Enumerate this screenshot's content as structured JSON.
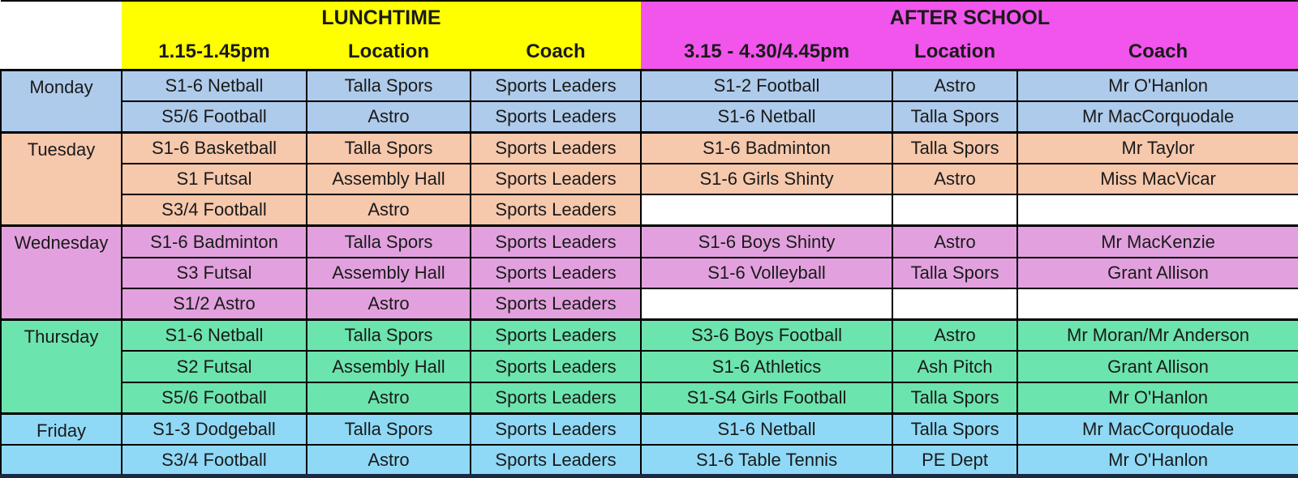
{
  "header": {
    "lunchtime": {
      "title": "LUNCHTIME",
      "time": "1.15-1.45pm",
      "location": "Location",
      "coach": "Coach"
    },
    "after_school": {
      "title": "AFTER SCHOOL",
      "time": "3.15 - 4.30/4.45pm",
      "location": "Location",
      "coach": "Coach"
    }
  },
  "colors": {
    "lunchtime_header": "#FFFF00",
    "after_school_header": "#F155EC",
    "monday": "#AECBEB",
    "tuesday": "#F6C8AC",
    "wednesday": "#E2A1DE",
    "thursday": "#6CE4AE",
    "friday": "#8FD9F6",
    "empty_cell": "#FFFFFF",
    "border": "#000000"
  },
  "days": [
    {
      "name": "Monday",
      "rows": [
        {
          "lunch": [
            "S1-6 Netball",
            "Talla Spors",
            "Sports Leaders"
          ],
          "after": [
            "S1-2 Football",
            "Astro",
            "Mr O'Hanlon"
          ]
        },
        {
          "lunch": [
            "S5/6 Football",
            "Astro",
            "Sports Leaders"
          ],
          "after": [
            "S1-6 Netball",
            "Talla Spors",
            "Mr MacCorquodale"
          ]
        }
      ]
    },
    {
      "name": "Tuesday",
      "rows": [
        {
          "lunch": [
            "S1-6 Basketball",
            "Talla Spors",
            "Sports Leaders"
          ],
          "after": [
            "S1-6 Badminton",
            "Talla Spors",
            "Mr Taylor"
          ]
        },
        {
          "lunch": [
            "S1 Futsal",
            "Assembly Hall",
            "Sports Leaders"
          ],
          "after": [
            "S1-6 Girls Shinty",
            "Astro",
            "Miss MacVicar"
          ]
        },
        {
          "lunch": [
            "S3/4 Football",
            "Astro",
            "Sports Leaders"
          ],
          "after": [
            "",
            "",
            ""
          ]
        }
      ]
    },
    {
      "name": "Wednesday",
      "rows": [
        {
          "lunch": [
            "S1-6 Badminton",
            "Talla Spors",
            "Sports Leaders"
          ],
          "after": [
            "S1-6 Boys Shinty",
            "Astro",
            "Mr MacKenzie"
          ]
        },
        {
          "lunch": [
            "S3 Futsal",
            "Assembly Hall",
            "Sports Leaders"
          ],
          "after": [
            "S1-6 Volleyball",
            "Talla Spors",
            "Grant Allison"
          ]
        },
        {
          "lunch": [
            "S1/2 Astro",
            "Astro",
            "Sports Leaders"
          ],
          "after": [
            "",
            "",
            ""
          ]
        }
      ]
    },
    {
      "name": "Thursday",
      "rows": [
        {
          "lunch": [
            "S1-6 Netball",
            "Talla Spors",
            "Sports Leaders"
          ],
          "after": [
            "S3-6 Boys Football",
            "Astro",
            "Mr Moran/Mr Anderson"
          ]
        },
        {
          "lunch": [
            "S2 Futsal",
            "Assembly Hall",
            "Sports Leaders"
          ],
          "after": [
            "S1-6 Athletics",
            "Ash Pitch",
            "Grant Allison"
          ]
        },
        {
          "lunch": [
            "S5/6 Football",
            "Astro",
            "Sports Leaders"
          ],
          "after": [
            "S1-S4 Girls Football",
            "Talla Spors",
            "Mr O'Hanlon"
          ]
        }
      ]
    },
    {
      "name": "Friday",
      "rows": [
        {
          "lunch": [
            "S1-3 Dodgeball",
            "Talla Spors",
            "Sports Leaders"
          ],
          "after": [
            "S1-6 Netball",
            "Talla Spors",
            "Mr MacCorquodale"
          ]
        },
        {
          "lunch": [
            "S3/4 Football",
            "Astro",
            "Sports Leaders"
          ],
          "after": [
            "S1-6 Table Tennis",
            "PE Dept",
            "Mr O'Hanlon"
          ]
        }
      ]
    }
  ]
}
